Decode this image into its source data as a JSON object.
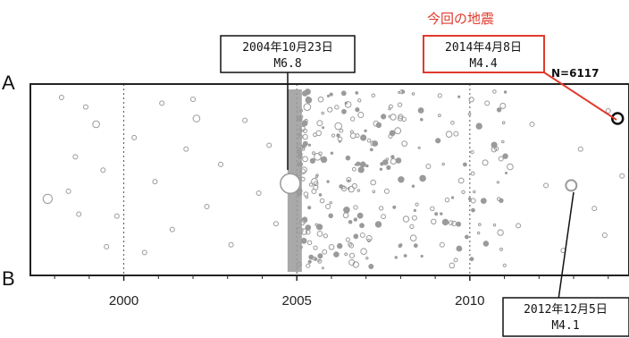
{
  "chart_data": {
    "type": "scatter",
    "title": "",
    "headline": "今回の地震",
    "count_label": "N=6117",
    "side_labels": {
      "top": "A",
      "bottom": "B"
    },
    "xlabel": "",
    "ylabel": "",
    "x_ticks": [
      "2000",
      "2005",
      "2010"
    ],
    "xlim": [
      1997.3,
      2014.6
    ],
    "ylim": [
      0,
      1
    ],
    "grid": {
      "vertical_dotted_at_ticks": true
    },
    "colors": {
      "events": "#9a9a9a",
      "highlight_box": "#e03a2e",
      "frame": "#222222"
    },
    "annotations": [
      {
        "id": "a2004",
        "date": "2004年10月23日",
        "magnitude": "M6.8",
        "x": 2004.81,
        "y": 0.48,
        "highlight": false
      },
      {
        "id": "a2014",
        "date": "2014年4月8日",
        "magnitude": "M4.4",
        "x": 2014.27,
        "y": 0.82,
        "highlight": true
      },
      {
        "id": "a2012",
        "date": "2012年12月5日",
        "magnitude": "M4.1",
        "x": 2012.93,
        "y": 0.47,
        "highlight": false
      }
    ],
    "series": [
      {
        "points": [
          [
            1998.2,
            0.93,
            1
          ],
          [
            1998.6,
            0.62,
            1
          ],
          [
            1998.9,
            0.88,
            1
          ],
          [
            1999.4,
            0.55,
            1
          ],
          [
            1999.8,
            0.31,
            1
          ],
          [
            1998.4,
            0.44,
            1
          ],
          [
            1997.8,
            0.4,
            3
          ],
          [
            1998.7,
            0.32,
            1
          ],
          [
            1999.2,
            0.79,
            2
          ],
          [
            1999.5,
            0.15,
            1
          ],
          [
            2000.3,
            0.72,
            1
          ],
          [
            2000.9,
            0.49,
            1
          ],
          [
            2001.4,
            0.24,
            1
          ],
          [
            2001.8,
            0.66,
            1
          ],
          [
            2002.0,
            0.92,
            1
          ],
          [
            2002.4,
            0.36,
            1
          ],
          [
            2002.8,
            0.58,
            1
          ],
          [
            2003.1,
            0.16,
            1
          ],
          [
            2003.5,
            0.81,
            1
          ],
          [
            2003.9,
            0.43,
            1
          ],
          [
            2004.2,
            0.68,
            1
          ],
          [
            2004.4,
            0.27,
            1
          ],
          [
            2002.1,
            0.82,
            2
          ],
          [
            2000.6,
            0.12,
            1
          ],
          [
            2001.1,
            0.9,
            1
          ],
          [
            2005.3,
            0.88,
            2
          ],
          [
            2005.6,
            0.62,
            2
          ],
          [
            2005.9,
            0.36,
            1
          ],
          [
            2006.2,
            0.78,
            2
          ],
          [
            2006.5,
            0.5,
            1
          ],
          [
            2006.9,
            0.21,
            1
          ],
          [
            2007.2,
            0.69,
            1
          ],
          [
            2007.6,
            0.44,
            1
          ],
          [
            2008.0,
            0.83,
            1
          ],
          [
            2008.4,
            0.3,
            1
          ],
          [
            2008.8,
            0.57,
            1
          ],
          [
            2009.2,
            0.16,
            1
          ],
          [
            2009.6,
            0.74,
            1
          ],
          [
            2010.1,
            0.39,
            1
          ],
          [
            2010.5,
            0.9,
            1
          ],
          [
            2010.9,
            0.61,
            1
          ],
          [
            2011.4,
            0.26,
            1
          ],
          [
            2011.8,
            0.79,
            1
          ],
          [
            2012.2,
            0.47,
            1
          ],
          [
            2012.7,
            0.13,
            1
          ],
          [
            2013.2,
            0.66,
            1
          ],
          [
            2013.6,
            0.35,
            1
          ],
          [
            2014.0,
            0.86,
            1
          ],
          [
            2014.4,
            0.52,
            1
          ],
          [
            2013.9,
            0.21,
            1
          ]
        ]
      }
    ]
  }
}
